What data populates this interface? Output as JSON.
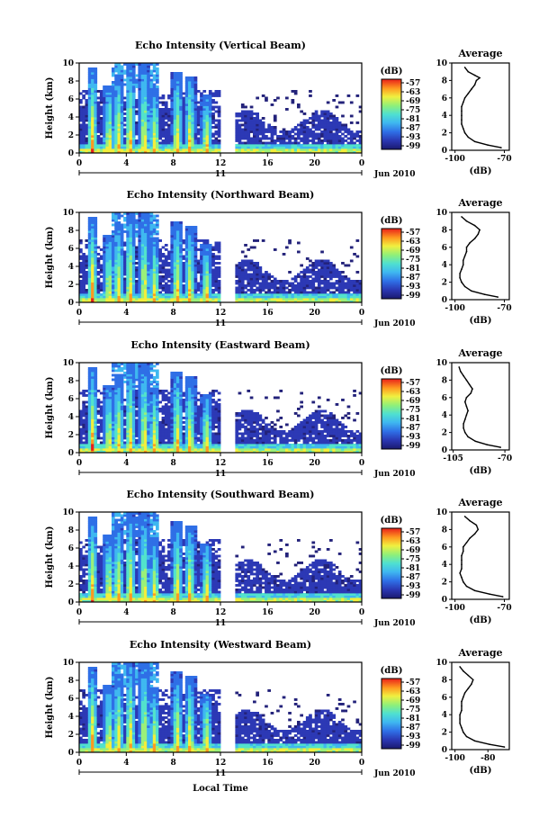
{
  "figure": {
    "xlabel": "Local Time",
    "date_label": "Jun 2010",
    "day_label": "11",
    "height_label": "Height (km)",
    "unit_label": "(dB)",
    "average_title": "Average",
    "colorbar_ticks": [
      "-57",
      "-63",
      "-69",
      "-75",
      "-81",
      "-87",
      "-93",
      "-99"
    ]
  },
  "chart_data": [
    {
      "type": "heatmap",
      "title": "Echo Intensity (Vertical Beam)",
      "ylabel": "Height (km)",
      "xlabel": "Local Time",
      "x_ticks": [
        "0",
        "4",
        "8",
        "12",
        "16",
        "20",
        "0"
      ],
      "y_ticks": [
        "0",
        "2",
        "4",
        "6",
        "8",
        "10"
      ],
      "xlim": [
        0,
        24
      ],
      "ylim": [
        0,
        10
      ],
      "colorbar": {
        "label": "(dB)",
        "ticks": [
          -57,
          -63,
          -69,
          -75,
          -81,
          -87,
          -93,
          -99
        ]
      },
      "profile": {
        "title": "Average",
        "xlabel": "(dB)",
        "x_ticks": [
          "-100",
          "-70"
        ],
        "xlim": [
          -102,
          -67
        ],
        "heights": [
          0.3,
          0.6,
          1,
          1.5,
          2,
          2.5,
          3,
          3.5,
          4,
          4.5,
          5,
          5.5,
          6,
          6.5,
          7,
          7.5,
          8,
          8.3,
          8.6,
          9,
          9.5
        ],
        "values": [
          -72,
          -80,
          -88,
          -92,
          -94,
          -95,
          -96,
          -96,
          -96,
          -96,
          -96,
          -95,
          -94,
          -92,
          -90,
          -88,
          -87,
          -85,
          -88,
          -92,
          -94
        ]
      }
    },
    {
      "type": "heatmap",
      "title": "Echo Intensity (Northward Beam)",
      "ylabel": "Height (km)",
      "xlabel": "Local Time",
      "x_ticks": [
        "0",
        "4",
        "8",
        "12",
        "16",
        "20",
        "0"
      ],
      "y_ticks": [
        "0",
        "2",
        "4",
        "6",
        "8",
        "10"
      ],
      "xlim": [
        0,
        24
      ],
      "ylim": [
        0,
        10
      ],
      "colorbar": {
        "label": "(dB)",
        "ticks": [
          -57,
          -63,
          -69,
          -75,
          -81,
          -87,
          -93,
          -99
        ]
      },
      "profile": {
        "title": "Average",
        "xlabel": "(dB)",
        "x_ticks": [
          "-100",
          "-70"
        ],
        "xlim": [
          -102,
          -67
        ],
        "heights": [
          0.3,
          0.6,
          1,
          1.5,
          2,
          2.5,
          3,
          3.5,
          4,
          4.5,
          5,
          5.5,
          6,
          6.5,
          7,
          7.5,
          8,
          8.5,
          9,
          9.5
        ],
        "values": [
          -74,
          -82,
          -90,
          -94,
          -96,
          -97,
          -97,
          -96,
          -95,
          -95,
          -94,
          -93,
          -93,
          -91,
          -88,
          -86,
          -85,
          -88,
          -93,
          -96
        ]
      }
    },
    {
      "type": "heatmap",
      "title": "Echo Intensity (Eastward Beam)",
      "ylabel": "Height (km)",
      "xlabel": "Local Time",
      "x_ticks": [
        "0",
        "4",
        "8",
        "12",
        "16",
        "20",
        "0"
      ],
      "y_ticks": [
        "0",
        "2",
        "4",
        "6",
        "8",
        "10"
      ],
      "xlim": [
        0,
        24
      ],
      "ylim": [
        0,
        10
      ],
      "colorbar": {
        "label": "(dB)",
        "ticks": [
          -57,
          -63,
          -69,
          -75,
          -81,
          -87,
          -93,
          -99
        ]
      },
      "profile": {
        "title": "Average",
        "xlabel": "(dB)",
        "x_ticks": [
          "-105",
          "-70"
        ],
        "xlim": [
          -106,
          -67
        ],
        "heights": [
          0.3,
          0.6,
          1,
          1.5,
          2,
          2.5,
          3,
          3.5,
          4,
          4.5,
          5,
          5.5,
          6,
          6.5,
          7,
          7.5,
          8,
          8.5,
          9,
          9.5
        ],
        "values": [
          -73,
          -82,
          -90,
          -95,
          -97,
          -98,
          -98,
          -97,
          -96,
          -95,
          -96,
          -97,
          -96,
          -93,
          -92,
          -94,
          -96,
          -98,
          -100,
          -101
        ]
      }
    },
    {
      "type": "heatmap",
      "title": "Echo Intensity (Southward Beam)",
      "ylabel": "Height (km)",
      "xlabel": "Local Time",
      "x_ticks": [
        "0",
        "4",
        "8",
        "12",
        "16",
        "20",
        "0"
      ],
      "y_ticks": [
        "0",
        "2",
        "4",
        "6",
        "8",
        "10"
      ],
      "xlim": [
        0,
        24
      ],
      "ylim": [
        0,
        10
      ],
      "colorbar": {
        "label": "(dB)",
        "ticks": [
          -57,
          -63,
          -69,
          -75,
          -81,
          -87,
          -93,
          -99
        ]
      },
      "profile": {
        "title": "Average",
        "xlabel": "(dB)",
        "x_ticks": [
          "-100",
          "-70"
        ],
        "xlim": [
          -102,
          -67
        ],
        "heights": [
          0.3,
          0.6,
          1,
          1.5,
          2,
          2.5,
          3,
          3.5,
          4,
          4.5,
          5,
          5.5,
          6,
          6.5,
          7,
          7.5,
          8,
          8.5,
          9,
          9.5
        ],
        "values": [
          -71,
          -79,
          -88,
          -93,
          -95,
          -96,
          -97,
          -96,
          -96,
          -96,
          -96,
          -95,
          -95,
          -93,
          -91,
          -88,
          -86,
          -87,
          -91,
          -94
        ]
      }
    },
    {
      "type": "heatmap",
      "title": "Echo Intensity (Westward Beam)",
      "ylabel": "Height (km)",
      "xlabel": "Local Time",
      "x_ticks": [
        "0",
        "4",
        "8",
        "12",
        "16",
        "20",
        "0"
      ],
      "y_ticks": [
        "0",
        "2",
        "4",
        "6",
        "8",
        "10"
      ],
      "xlim": [
        0,
        24
      ],
      "ylim": [
        0,
        10
      ],
      "colorbar": {
        "label": "(dB)",
        "ticks": [
          -57,
          -63,
          -69,
          -75,
          -81,
          -87,
          -93,
          -99
        ]
      },
      "profile": {
        "title": "Average",
        "xlabel": "(dB)",
        "x_ticks": [
          "-100",
          "-80"
        ],
        "xlim": [
          -102,
          -67
        ],
        "heights": [
          0.3,
          0.6,
          1,
          1.5,
          2,
          2.5,
          3,
          3.5,
          4,
          4.5,
          5,
          5.5,
          6,
          6.5,
          7,
          7.5,
          8,
          8.5,
          9,
          9.5
        ],
        "values": [
          -70,
          -79,
          -88,
          -93,
          -95,
          -96,
          -97,
          -97,
          -97,
          -96,
          -96,
          -96,
          -95,
          -94,
          -92,
          -90,
          -89,
          -92,
          -95,
          -97
        ]
      }
    }
  ]
}
